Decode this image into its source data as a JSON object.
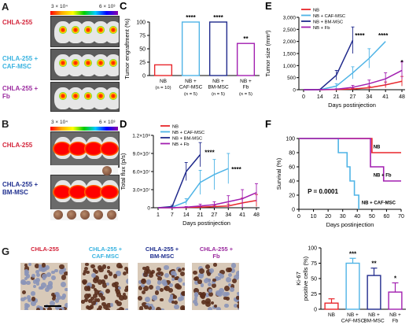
{
  "panels": {
    "A": {
      "letter": "A",
      "colorbar_left": "3 × 10⁴",
      "colorbar_right": "6 × 10³",
      "rows": [
        {
          "label": "CHLA-255",
          "color": "#d4253b"
        },
        {
          "label": "CHLA-255 +\nCAF-MSC",
          "color": "#39b3e0"
        },
        {
          "label": "CHLA-255 +\nFb",
          "color": "#9b2a9f"
        }
      ]
    },
    "B": {
      "letter": "B",
      "colorbar_left": "3 × 10⁴",
      "colorbar_right": "6 × 10³",
      "rows": [
        {
          "label": "CHLA-255",
          "color": "#d4253b"
        },
        {
          "label": "CHLA-255 +\nBM-MSC",
          "color": "#1f2f8f"
        }
      ]
    },
    "G": {
      "letter": "G",
      "images": [
        {
          "label": "CHLA-255",
          "color": "#d4253b"
        },
        {
          "label": "CHLA-255 +\nCAF-MSC",
          "color": "#39b3e0"
        },
        {
          "label": "CHLA-255 +\nBM-MSC",
          "color": "#1f2f8f"
        },
        {
          "label": "CHLA-255 +\nFb",
          "color": "#9b2a9f"
        }
      ]
    }
  },
  "colors": {
    "NB": "#e8262b",
    "CAF": "#4fb4e6",
    "BM": "#202a8c",
    "Fb": "#a21fb0"
  },
  "chart_data": [
    {
      "id": "C",
      "letter": "C",
      "type": "bar",
      "ylabel": "Tumor engraftment (%)",
      "ylim": [
        0,
        100
      ],
      "yticks": [
        0,
        25,
        50,
        75,
        100
      ],
      "categories": [
        "NB",
        "NB +\nCAF-MSC",
        "NB +\nBM-MSC",
        "NB +\nFb"
      ],
      "n_labels": [
        "(n = 10)",
        "(n = 5)",
        "(n = 5)",
        "(n = 5)"
      ],
      "values": [
        20,
        100,
        100,
        60
      ],
      "significance": [
        "",
        "****",
        "****",
        "**"
      ],
      "bar_colors": [
        "#e8262b",
        "#4fb4e6",
        "#202a8c",
        "#a21fb0"
      ]
    },
    {
      "id": "E",
      "letter": "E",
      "type": "line",
      "ylabel": "Tumor size (mm³)",
      "xlabel": "Days postinjection",
      "ylim": [
        0,
        3000
      ],
      "yticks": [
        0,
        500,
        1000,
        1500,
        2000,
        2500,
        3000
      ],
      "yticklabels": [
        "0",
        "500",
        "1,000",
        "1,500",
        "2,000",
        "2,500",
        "3,000"
      ],
      "xticks": [
        0,
        14,
        21,
        27,
        34,
        41,
        48
      ],
      "legend": [
        "NB",
        "NB + CAF-MSC",
        "NB + BM-MSC",
        "NB + Fb"
      ],
      "series": [
        {
          "name": "NB",
          "color": "#e8262b",
          "x": [
            0,
            14,
            21,
            27,
            34,
            41,
            48
          ],
          "y": [
            0,
            0,
            10,
            30,
            80,
            200,
            350
          ],
          "err": [
            0,
            0,
            10,
            30,
            60,
            120,
            200
          ]
        },
        {
          "name": "NB + CAF-MSC",
          "color": "#4fb4e6",
          "x": [
            0,
            14,
            21,
            27,
            34,
            41
          ],
          "y": [
            0,
            0,
            150,
            700,
            1300,
            2000
          ],
          "err": [
            0,
            0,
            100,
            250,
            400,
            0
          ]
        },
        {
          "name": "NB + BM-MSC",
          "color": "#202a8c",
          "x": [
            0,
            14,
            21,
            27
          ],
          "y": [
            0,
            10,
            600,
            2050
          ],
          "err": [
            0,
            10,
            200,
            550
          ]
        },
        {
          "name": "NB + Fb",
          "color": "#a21fb0",
          "x": [
            0,
            14,
            21,
            27,
            34,
            41,
            48
          ],
          "y": [
            0,
            0,
            20,
            100,
            250,
            450,
            800
          ],
          "err": [
            0,
            0,
            20,
            80,
            150,
            250,
            350
          ]
        }
      ],
      "annotations": [
        {
          "x": 30,
          "y": 2150,
          "text": "****"
        },
        {
          "x": 40,
          "y": 2150,
          "text": "****"
        },
        {
          "x": 48,
          "y": 1050,
          "text": "*"
        }
      ]
    },
    {
      "id": "D",
      "letter": "D",
      "type": "line",
      "ylabel": "Total flux (p/s)",
      "xlabel": "Days postinjection",
      "ylim": [
        0,
        120000000
      ],
      "yticks": [
        0,
        30000000,
        60000000,
        90000000,
        120000000
      ],
      "yticklabels": [
        "0",
        "3.0×10⁷",
        "6.0×10⁷",
        "9.0×10⁷",
        "1.2×10⁸"
      ],
      "xticks": [
        1,
        7,
        14,
        21,
        27,
        34,
        41,
        48
      ],
      "legend": [
        "NB",
        "NB + CAF-MSC",
        "NB + BM-MSC",
        "NB + Fb"
      ],
      "series": [
        {
          "name": "NB",
          "color": "#e8262b",
          "x": [
            1,
            7,
            14,
            21,
            27,
            34,
            41,
            48
          ],
          "y": [
            0,
            0,
            500000,
            1000000,
            2000000,
            3000000,
            8000000,
            12000000
          ],
          "err": [
            0,
            0,
            500000,
            1000000,
            2000000,
            3000000,
            8000000,
            10000000
          ]
        },
        {
          "name": "NB + CAF-MSC",
          "color": "#4fb4e6",
          "x": [
            1,
            7,
            14,
            21,
            27,
            34
          ],
          "y": [
            0,
            1000000,
            10000000,
            42000000,
            55000000,
            65000000
          ],
          "err": [
            0,
            1000000,
            5000000,
            20000000,
            25000000,
            25000000
          ]
        },
        {
          "name": "NB + BM-MSC",
          "color": "#202a8c",
          "x": [
            1,
            7,
            14,
            21
          ],
          "y": [
            0,
            2000000,
            60000000,
            88000000
          ],
          "err": [
            0,
            2000000,
            15000000,
            20000000
          ]
        },
        {
          "name": "NB + Fb",
          "color": "#a21fb0",
          "x": [
            1,
            7,
            14,
            21,
            27,
            34,
            41,
            48
          ],
          "y": [
            0,
            0,
            1000000,
            3000000,
            5000000,
            10000000,
            15000000,
            25000000
          ],
          "err": [
            0,
            0,
            1000000,
            3000000,
            5000000,
            10000000,
            15000000,
            15000000
          ]
        }
      ],
      "annotations": [
        {
          "x": 25,
          "y": 88000000,
          "text": "****"
        },
        {
          "x": 38,
          "y": 60000000,
          "text": "****"
        }
      ]
    },
    {
      "id": "F",
      "letter": "F",
      "type": "line",
      "ylabel": "Survival (%)",
      "xlabel": "Days postinjection",
      "ylim": [
        0,
        100
      ],
      "yticks": [
        0,
        20,
        40,
        60,
        80,
        100
      ],
      "xlim": [
        0,
        70
      ],
      "xticks": [
        0,
        10,
        20,
        30,
        40,
        50,
        60,
        70
      ],
      "pvalue": "P = 0.0001",
      "series": [
        {
          "name": "NB",
          "color": "#e8262b",
          "steps": [
            [
              0,
              100
            ],
            [
              50,
              100
            ],
            [
              50,
              80
            ],
            [
              70,
              80
            ]
          ]
        },
        {
          "name": "NB + CAF-MSC",
          "color": "#4fb4e6",
          "steps": [
            [
              0,
              100
            ],
            [
              27,
              100
            ],
            [
              27,
              80
            ],
            [
              33,
              80
            ],
            [
              33,
              60
            ],
            [
              35,
              60
            ],
            [
              35,
              40
            ],
            [
              38,
              40
            ],
            [
              38,
              20
            ],
            [
              41,
              20
            ],
            [
              41,
              0
            ]
          ]
        },
        {
          "name": "NB + Fb",
          "color": "#a21fb0",
          "steps": [
            [
              0,
              100
            ],
            [
              49,
              100
            ],
            [
              49,
              60
            ],
            [
              58,
              60
            ],
            [
              58,
              40
            ],
            [
              70,
              40
            ]
          ]
        }
      ],
      "curve_labels": [
        {
          "text": "NB",
          "x": 51,
          "y": 86
        },
        {
          "text": "NB + Fb",
          "x": 51,
          "y": 46
        },
        {
          "text": "NB + CAF-MSC",
          "x": 43,
          "y": 7
        }
      ]
    },
    {
      "id": "H",
      "type": "bar",
      "ylabel": "Ki-67\npositive cells (%)",
      "ylim": [
        0,
        100
      ],
      "yticks": [
        0,
        25,
        50,
        75,
        100
      ],
      "categories": [
        "NB",
        "NB +\nCAF-MSC",
        "NB +\nBM-MSC",
        "NB +\nFb"
      ],
      "values": [
        10,
        75,
        55,
        28
      ],
      "errors": [
        7,
        8,
        12,
        15
      ],
      "significance": [
        "",
        "***",
        "**",
        "*"
      ],
      "bar_colors": [
        "#e8262b",
        "#4fb4e6",
        "#202a8c",
        "#a21fb0"
      ]
    }
  ]
}
